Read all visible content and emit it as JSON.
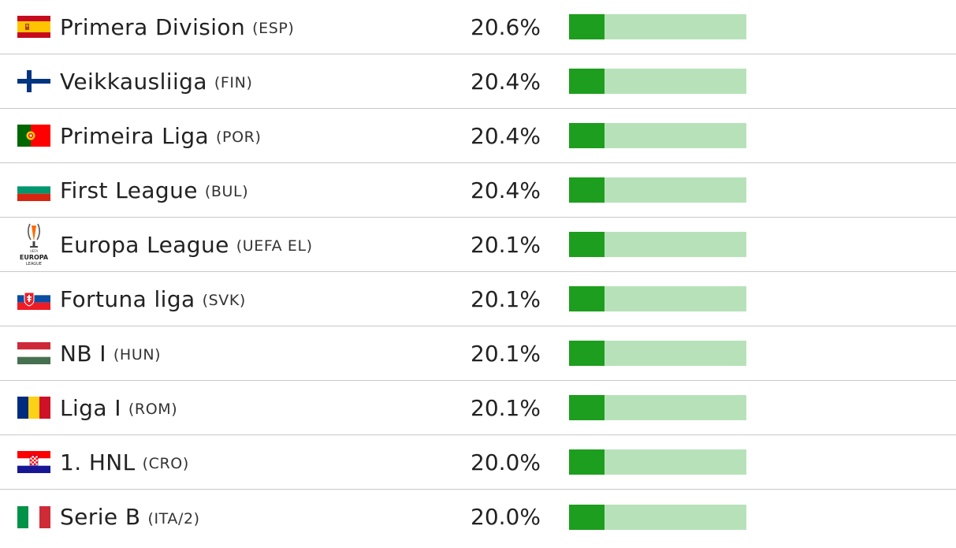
{
  "rows": [
    {
      "league": "Primera Division",
      "code": "(ESP)",
      "pct": "20.6%",
      "flag_icon": "spain-flag-icon",
      "fill": 0.2
    },
    {
      "league": "Veikkausliiga",
      "code": "(FIN)",
      "pct": "20.4%",
      "flag_icon": "finland-flag-icon",
      "fill": 0.2
    },
    {
      "league": "Primeira Liga",
      "code": "(POR)",
      "pct": "20.4%",
      "flag_icon": "portugal-flag-icon",
      "fill": 0.2
    },
    {
      "league": "First League",
      "code": "(BUL)",
      "pct": "20.4%",
      "flag_icon": "bulgaria-flag-icon",
      "fill": 0.2
    },
    {
      "league": "Europa League",
      "code": "(UEFA EL)",
      "pct": "20.1%",
      "flag_icon": "europa-league-logo-icon",
      "fill": 0.2
    },
    {
      "league": "Fortuna liga",
      "code": "(SVK)",
      "pct": "20.1%",
      "flag_icon": "slovakia-flag-icon",
      "fill": 0.2
    },
    {
      "league": "NB I",
      "code": "(HUN)",
      "pct": "20.1%",
      "flag_icon": "hungary-flag-icon",
      "fill": 0.2
    },
    {
      "league": "Liga I",
      "code": "(ROM)",
      "pct": "20.1%",
      "flag_icon": "romania-flag-icon",
      "fill": 0.2
    },
    {
      "league": "1. HNL",
      "code": "(CRO)",
      "pct": "20.0%",
      "flag_icon": "croatia-flag-icon",
      "fill": 0.2
    },
    {
      "league": "Serie B",
      "code": "(ITA/2)",
      "pct": "20.0%",
      "flag_icon": "italy-flag-icon",
      "fill": 0.2
    }
  ],
  "colors": {
    "bar_fill": "#1e9e1e",
    "bar_track": "#b7e2b9",
    "divider": "#c8c8c8"
  },
  "logo_text": {
    "europa_top": "EUROPA",
    "europa_bottom": "LEAGUE"
  }
}
